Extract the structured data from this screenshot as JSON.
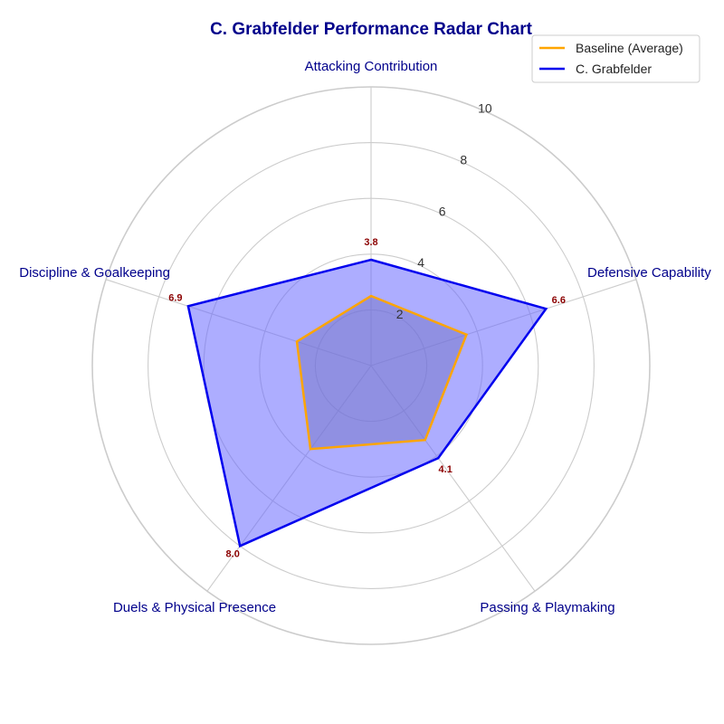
{
  "chart_data": {
    "type": "radar",
    "title": "C. Grabfelder Performance Radar Chart",
    "categories": [
      "Attacking Contribution",
      "Defensive Capability",
      "Passing & Playmaking",
      "Duels & Physical Presence",
      "Discipline & Goalkeeping"
    ],
    "rlim": [
      0,
      10
    ],
    "rticks": [
      2,
      4,
      6,
      8,
      10
    ],
    "grid": true,
    "legend_position": "top-right",
    "series": [
      {
        "name": "Baseline (Average)",
        "values": [
          2.5,
          3.6,
          3.3,
          3.7,
          2.8
        ],
        "color": "#FFA500",
        "fill": "#808080"
      },
      {
        "name": "C. Grabfelder",
        "values": [
          3.8,
          6.6,
          4.1,
          8.0,
          6.9
        ],
        "color": "#0000EE",
        "fill": "#6A6AFF"
      }
    ],
    "data_labels": [
      "3.8",
      "6.6",
      "4.1",
      "8.0",
      "6.9"
    ]
  },
  "colors": {
    "title": "#00008B",
    "axis_label": "#00008B",
    "value_label": "#8B0000",
    "grid": "#CCCCCC"
  }
}
